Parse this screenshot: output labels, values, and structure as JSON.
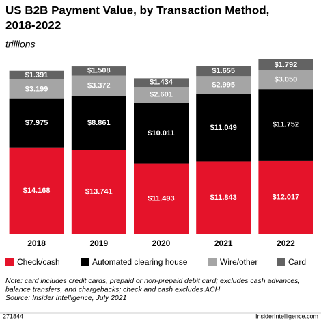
{
  "chart_data": {
    "type": "stacked_bar",
    "title_lines": [
      "US B2B Payment Value, by Transaction Method,",
      "2018-2022"
    ],
    "subtitle": "trillions",
    "categories": [
      "2018",
      "2019",
      "2020",
      "2021",
      "2022"
    ],
    "series": [
      {
        "name": "Check/cash",
        "color": "#e5132a",
        "values": [
          14.168,
          13.741,
          11.493,
          11.843,
          12.017
        ],
        "value_labels": [
          "$14.168",
          "$13.741",
          "$11.493",
          "$11.843",
          "$12.017"
        ]
      },
      {
        "name": "Automated clearing house",
        "color": "#000000",
        "values": [
          7.975,
          8.861,
          10.011,
          11.049,
          11.752
        ],
        "value_labels": [
          "$7.975",
          "$8.861",
          "$10.011",
          "$11.049",
          "$11.752"
        ]
      },
      {
        "name": "Wire/other",
        "color": "#a5a5a5",
        "values": [
          3.199,
          3.372,
          2.601,
          2.995,
          3.05
        ],
        "value_labels": [
          "$3.199",
          "$3.372",
          "$2.601",
          "$2.995",
          "$3.050"
        ]
      },
      {
        "name": "Card",
        "color": "#636363",
        "values": [
          1.391,
          1.508,
          1.434,
          1.655,
          1.792
        ],
        "value_labels": [
          "$1.391",
          "$1.508",
          "$1.434",
          "$1.655",
          "$1.792"
        ]
      }
    ],
    "notes": [
      "Note: card includes credit cards, prepaid or non-prepaid debit card; excludes cash advances,",
      "balance transfers, and chargebacks; check and cash excludes ACH",
      "Source: Insider Intelligence, July 2021"
    ],
    "chart_id": "271844",
    "brand": "InsiderIntelligence.com"
  }
}
